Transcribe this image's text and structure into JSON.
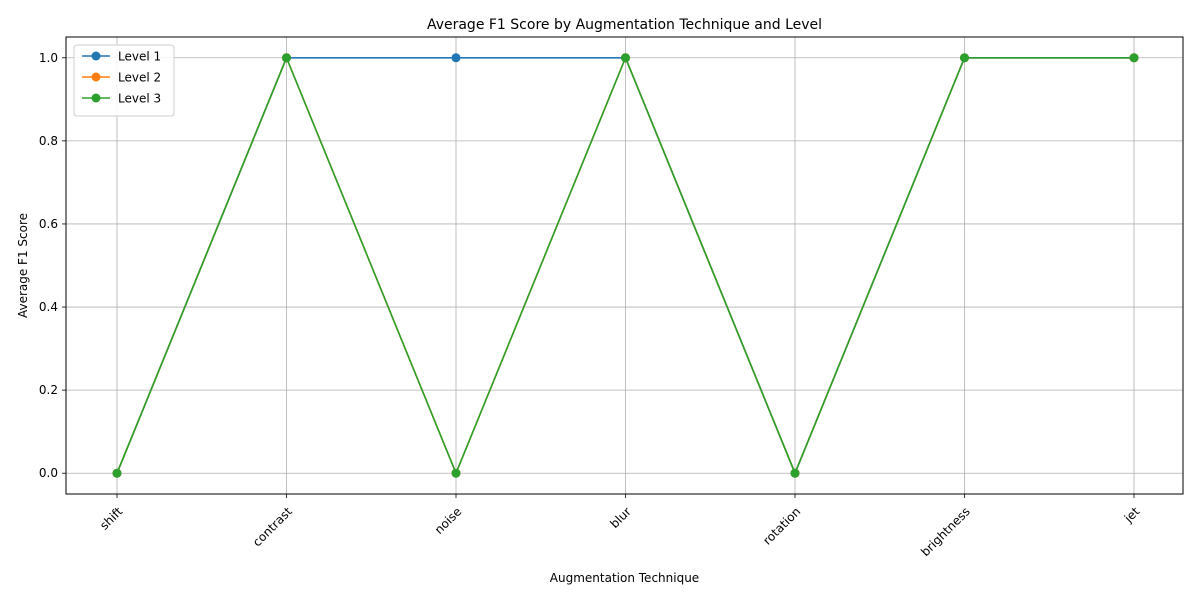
{
  "chart_data": {
    "type": "line",
    "title": "Average F1 Score by Augmentation Technique and Level",
    "xlabel": "Augmentation Technique",
    "ylabel": "Average F1 Score",
    "categories": [
      "shift",
      "contrast",
      "noise",
      "blur",
      "rotation",
      "brightness",
      "jet"
    ],
    "yticks": [
      "0.0",
      "0.2",
      "0.4",
      "0.6",
      "0.8",
      "1.0"
    ],
    "ylim": [
      -0.05,
      1.05
    ],
    "grid": true,
    "legend_position": "top-left",
    "series": [
      {
        "name": "Level 1",
        "color": "#1f77b4",
        "values": [
          0,
          1,
          1,
          1,
          0,
          1,
          1
        ]
      },
      {
        "name": "Level 2",
        "color": "#ff7f0e",
        "values": [
          0,
          1,
          0,
          1,
          0,
          1,
          1
        ]
      },
      {
        "name": "Level 3",
        "color": "#2ca02c",
        "values": [
          0,
          1,
          0,
          1,
          0,
          1,
          1
        ]
      }
    ]
  }
}
